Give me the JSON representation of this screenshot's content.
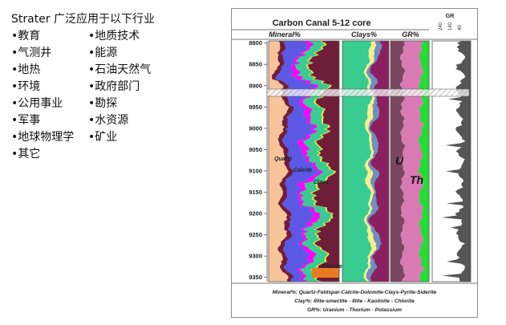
{
  "panel": {
    "title": "Strater 广泛应用于以下行业",
    "items": [
      "•教育",
      "•地质技术",
      "•气测井",
      "•能源",
      "•地热",
      "•石油天然气",
      "•环境",
      "•政府部门",
      "•公用事业",
      "•勘探",
      "•军事",
      "•水资源",
      "•地球物理学",
      "•矿业",
      "•其它"
    ]
  },
  "chart_data": {
    "type": "area",
    "title": "Carbon Canal 5-12 core",
    "depth_axis": {
      "ticks": [
        8800,
        8850,
        8900,
        8950,
        9000,
        9050,
        9100,
        9150,
        9200,
        9250,
        9300,
        9350
      ],
      "range": [
        8795,
        9360
      ]
    },
    "tracks": [
      {
        "name": "Mineral%",
        "labels": [
          "Quartz",
          "Calcite",
          "Clays",
          "Siderite"
        ]
      },
      {
        "name": "Clays%"
      },
      {
        "name": "GR%",
        "labels": [
          "U",
          "Th"
        ]
      },
      {
        "name": "GR",
        "ticks": [
          "240",
          "140",
          "40"
        ]
      }
    ],
    "colors": {
      "quartz": "#f7c49a",
      "feldspar": "#6f1e3a",
      "calcite": "#5c58e6",
      "dolomite": "#ff00ff",
      "clays": "#38cc90",
      "pyrite": "#efef3a",
      "siderite": "#e87b22",
      "illite_smectite": "#38cc90",
      "illite": "#f5f08c",
      "kaolinite": "#6f8fbf",
      "chlorite": "#8b2060",
      "uranium": "#7a4660",
      "thorium": "#d97ab5",
      "potassium": "#22dd33",
      "gr": "#555555"
    },
    "legend_lines": [
      "Mineral%: Quartz-Feldspar-Calcite-Dolomite-Clays-Pyrite-Siderite",
      "Clay%: Illite-smectite - Illite - Kaolinite - Chlorite",
      "GR%:  Uranium - Thorium - Potassium"
    ]
  }
}
